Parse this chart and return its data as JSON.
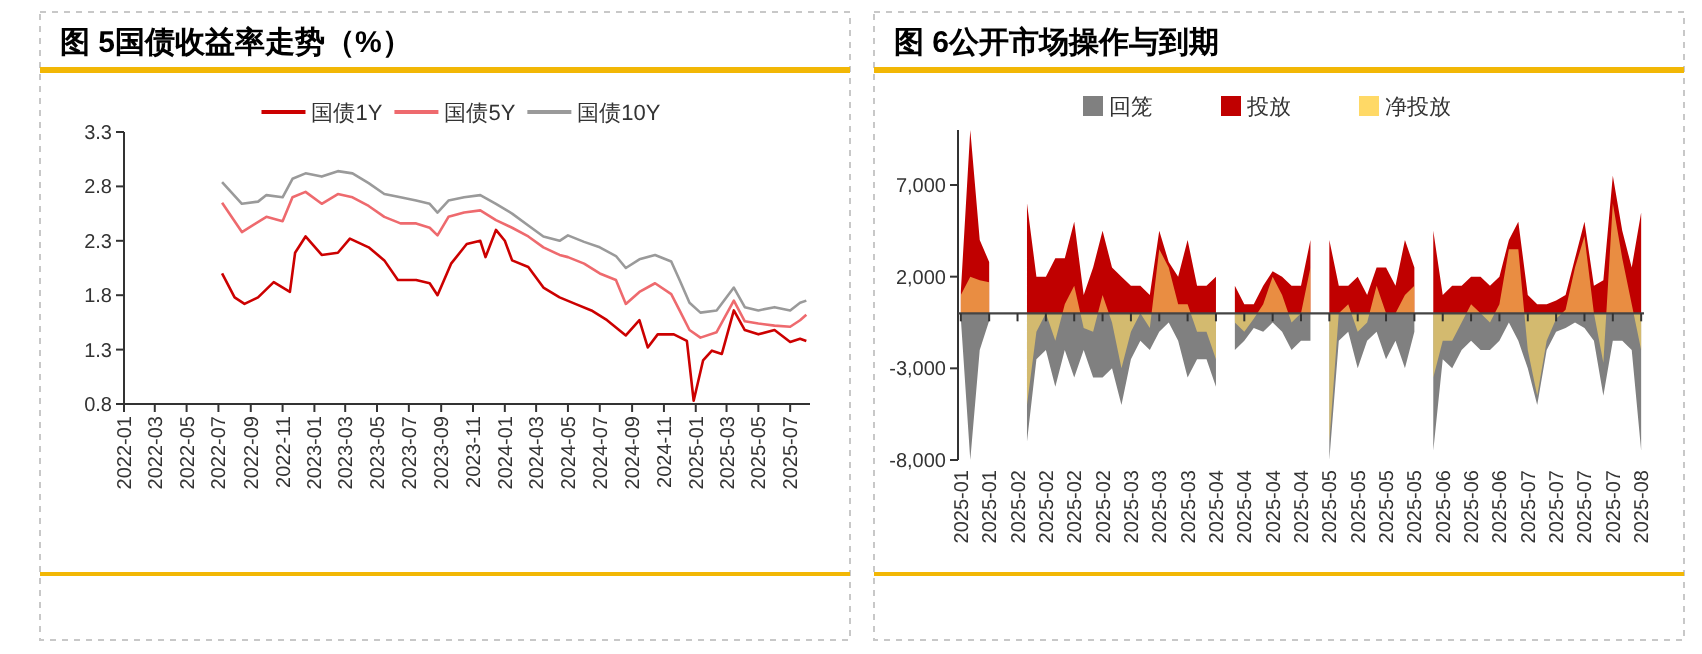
{
  "chart_data": [
    {
      "type": "line",
      "title": "图 5国债收益率走势（%）",
      "legend": "top",
      "xlim": [
        "2022-01",
        "2025-08-08"
      ],
      "xticks": [
        "2022-01",
        "2022-03",
        "2022-05",
        "2022-07",
        "2022-09",
        "2022-11",
        "2023-01",
        "2023-03",
        "2023-05",
        "2023-07",
        "2023-09",
        "2023-11",
        "2024-01",
        "2024-03",
        "2024-05",
        "2024-07",
        "2024-09",
        "2024-11",
        "2025-01",
        "2025-03",
        "2025-05",
        "2025-07"
      ],
      "ylim": [
        0.8,
        3.3
      ],
      "yticks": [
        0.8,
        1.3,
        1.8,
        2.3,
        2.8,
        3.3
      ],
      "series": [
        {
          "name": "国债1Y",
          "color": "#cc0000",
          "x": [
            "2022-07-08",
            "2022-08-01",
            "2022-08-20",
            "2022-09-15",
            "2022-10-15",
            "2022-11-15",
            "2022-11-25",
            "2022-12-15",
            "2023-01-15",
            "2023-02-15",
            "2023-03-10",
            "2023-04-15",
            "2023-05-15",
            "2023-06-10",
            "2023-07-15",
            "2023-08-10",
            "2023-08-25",
            "2023-09-20",
            "2023-10-20",
            "2023-11-15",
            "2023-11-25",
            "2023-12-15",
            "2024-01-01",
            "2024-01-15",
            "2024-02-15",
            "2024-03-15",
            "2024-04-15",
            "2024-05-15",
            "2024-06-15",
            "2024-07-15",
            "2024-08-20",
            "2024-09-15",
            "2024-10-01",
            "2024-10-20",
            "2024-11-20",
            "2024-12-15",
            "2024-12-28",
            "2025-01-15",
            "2025-02-01",
            "2025-02-20",
            "2025-03-15",
            "2025-04-05",
            "2025-05-01",
            "2025-06-01",
            "2025-07-01",
            "2025-07-20",
            "2025-08-01"
          ],
          "values": [
            2.0,
            1.78,
            1.72,
            1.78,
            1.92,
            1.83,
            2.19,
            2.34,
            2.17,
            2.19,
            2.32,
            2.24,
            2.12,
            1.94,
            1.94,
            1.91,
            1.8,
            2.09,
            2.27,
            2.3,
            2.15,
            2.4,
            2.3,
            2.12,
            2.06,
            1.87,
            1.78,
            1.72,
            1.66,
            1.57,
            1.43,
            1.57,
            1.32,
            1.44,
            1.44,
            1.38,
            0.83,
            1.2,
            1.29,
            1.26,
            1.66,
            1.48,
            1.44,
            1.48,
            1.37,
            1.4,
            1.38
          ]
        },
        {
          "name": "国债5Y",
          "color": "#ee6a6e",
          "x": [
            "2022-07-08",
            "2022-08-15",
            "2022-10-01",
            "2022-11-01",
            "2022-11-20",
            "2022-12-15",
            "2023-01-15",
            "2023-02-15",
            "2023-03-15",
            "2023-04-15",
            "2023-05-15",
            "2023-06-15",
            "2023-07-15",
            "2023-08-10",
            "2023-08-25",
            "2023-09-15",
            "2023-10-15",
            "2023-11-15",
            "2023-12-15",
            "2024-01-15",
            "2024-02-15",
            "2024-03-15",
            "2024-04-15",
            "2024-05-01",
            "2024-06-01",
            "2024-07-01",
            "2024-08-01",
            "2024-08-20",
            "2024-09-15",
            "2024-10-15",
            "2024-11-15",
            "2024-12-01",
            "2024-12-20",
            "2025-01-10",
            "2025-02-10",
            "2025-03-15",
            "2025-04-05",
            "2025-05-01",
            "2025-06-01",
            "2025-07-01",
            "2025-07-20",
            "2025-08-01"
          ],
          "values": [
            2.65,
            2.38,
            2.52,
            2.48,
            2.7,
            2.75,
            2.64,
            2.73,
            2.7,
            2.62,
            2.52,
            2.46,
            2.46,
            2.42,
            2.35,
            2.52,
            2.56,
            2.58,
            2.49,
            2.42,
            2.34,
            2.24,
            2.17,
            2.15,
            2.09,
            2.0,
            1.94,
            1.72,
            1.83,
            1.91,
            1.81,
            1.66,
            1.48,
            1.41,
            1.46,
            1.75,
            1.56,
            1.54,
            1.52,
            1.51,
            1.57,
            1.62
          ]
        },
        {
          "name": "国债10Y",
          "color": "#9a9a9a",
          "x": [
            "2022-07-08",
            "2022-08-15",
            "2022-09-15",
            "2022-10-01",
            "2022-11-01",
            "2022-11-20",
            "2022-12-15",
            "2023-01-15",
            "2023-02-15",
            "2023-03-15",
            "2023-04-15",
            "2023-05-15",
            "2023-06-15",
            "2023-07-15",
            "2023-08-10",
            "2023-08-25",
            "2023-09-15",
            "2023-10-15",
            "2023-11-15",
            "2023-12-15",
            "2024-01-15",
            "2024-02-15",
            "2024-03-15",
            "2024-04-15",
            "2024-05-01",
            "2024-06-01",
            "2024-07-01",
            "2024-08-01",
            "2024-08-20",
            "2024-09-15",
            "2024-10-15",
            "2024-11-15",
            "2024-12-01",
            "2024-12-20",
            "2025-01-10",
            "2025-02-10",
            "2025-03-15",
            "2025-04-05",
            "2025-05-01",
            "2025-06-01",
            "2025-07-01",
            "2025-07-20",
            "2025-08-01"
          ],
          "values": [
            2.84,
            2.64,
            2.66,
            2.72,
            2.7,
            2.87,
            2.92,
            2.89,
            2.94,
            2.92,
            2.83,
            2.73,
            2.7,
            2.67,
            2.64,
            2.56,
            2.67,
            2.7,
            2.72,
            2.64,
            2.55,
            2.44,
            2.34,
            2.3,
            2.35,
            2.29,
            2.24,
            2.16,
            2.05,
            2.13,
            2.17,
            2.11,
            1.94,
            1.73,
            1.64,
            1.66,
            1.87,
            1.69,
            1.66,
            1.69,
            1.66,
            1.73,
            1.75
          ]
        }
      ]
    },
    {
      "type": "area",
      "title": "图 6公开市场操作与到期",
      "legend": "top",
      "categories": [
        "2025-01",
        null,
        null,
        "2025-01",
        null,
        null,
        "2025-02",
        null,
        null,
        "2025-02",
        null,
        null,
        "2025-02",
        null,
        null,
        "2025-02",
        null,
        null,
        "2025-03",
        null,
        null,
        "2025-03",
        null,
        null,
        "2025-03",
        null,
        null,
        "2025-04",
        null,
        null,
        "2025-04",
        null,
        null,
        "2025-04",
        null,
        null,
        "2025-04",
        null,
        null,
        "2025-05",
        null,
        null,
        "2025-05",
        null,
        null,
        "2025-05",
        null,
        null,
        "2025-05",
        null,
        null,
        "2025-06",
        null,
        null,
        "2025-06",
        null,
        null,
        "2025-06",
        null,
        null,
        "2025-07",
        null,
        null,
        "2025-07",
        null,
        null,
        "2025-07",
        null,
        null,
        "2025-07",
        null,
        null,
        "2025-08"
      ],
      "ylim": [
        -8000,
        10000
      ],
      "yticks": [
        {
          "value": -8000,
          "label": "-8,000"
        },
        {
          "value": -3000,
          "label": "-3,000"
        },
        {
          "value": 2000,
          "label": "2,000"
        },
        {
          "value": 7000,
          "label": "7,000"
        }
      ],
      "series": [
        {
          "name": "回笼",
          "color": "#808080",
          "values": [
            -300,
            -8000,
            -2000,
            -400,
            null,
            null,
            null,
            -7000,
            -2500,
            -2000,
            -4000,
            -2000,
            -3500,
            -2000,
            -3500,
            -3500,
            -3000,
            -5000,
            -2500,
            -1500,
            -2000,
            -1000,
            -500,
            -1500,
            -3500,
            -2500,
            -2500,
            -4000,
            null,
            -2000,
            -1500,
            -800,
            -1000,
            -500,
            -1000,
            -2000,
            -1500,
            -1500,
            null,
            -8000,
            -1500,
            -1000,
            -3000,
            -1500,
            -1000,
            -2500,
            -1500,
            -3000,
            -1000,
            null,
            -7500,
            -2500,
            -3000,
            -2000,
            -1500,
            -2000,
            -2000,
            -1500,
            -500,
            -1500,
            -3000,
            -5000,
            -2000,
            -1000,
            -800,
            -500,
            -800,
            -1500,
            -4500,
            -1500,
            -1500,
            -2000,
            -7500
          ]
        },
        {
          "name": "投放",
          "color": "#c00000",
          "values": [
            1200,
            10000,
            4000,
            2800,
            null,
            null,
            null,
            6000,
            2000,
            2000,
            3000,
            3000,
            5000,
            1000,
            2500,
            4500,
            2500,
            2000,
            1500,
            1500,
            1000,
            4500,
            2800,
            2000,
            4000,
            1500,
            1500,
            2000,
            null,
            1500,
            500,
            500,
            1500,
            2300,
            2000,
            1500,
            1500,
            4000,
            null,
            4000,
            1500,
            1500,
            2000,
            1000,
            2500,
            2500,
            1500,
            4000,
            2500,
            null,
            4500,
            1000,
            1500,
            1500,
            2000,
            2000,
            1500,
            2000,
            4000,
            5000,
            1000,
            500,
            500,
            700,
            1000,
            3000,
            5000,
            1500,
            1800,
            7500,
            4500,
            2500,
            5500
          ]
        },
        {
          "name": "净投放",
          "color": "#ffd966",
          "values": [
            1000,
            2000,
            1800,
            1700,
            null,
            null,
            null,
            -5000,
            -1000,
            0,
            -1500,
            500,
            1500,
            -800,
            -1000,
            1000,
            -500,
            -3000,
            -1000,
            0,
            -800,
            3500,
            2500,
            500,
            500,
            -1000,
            -1000,
            -2500,
            null,
            -500,
            -1000,
            -300,
            500,
            2000,
            1000,
            -500,
            0,
            2500,
            null,
            -7000,
            0,
            500,
            -1000,
            -500,
            1500,
            0,
            0,
            1000,
            1500,
            null,
            -3500,
            -1500,
            -1500,
            -500,
            500,
            0,
            -500,
            500,
            3500,
            3500,
            -2000,
            -4500,
            -1500,
            -300,
            200,
            2500,
            4200,
            0,
            -2700,
            6000,
            3000,
            500,
            -2000
          ]
        }
      ]
    }
  ]
}
